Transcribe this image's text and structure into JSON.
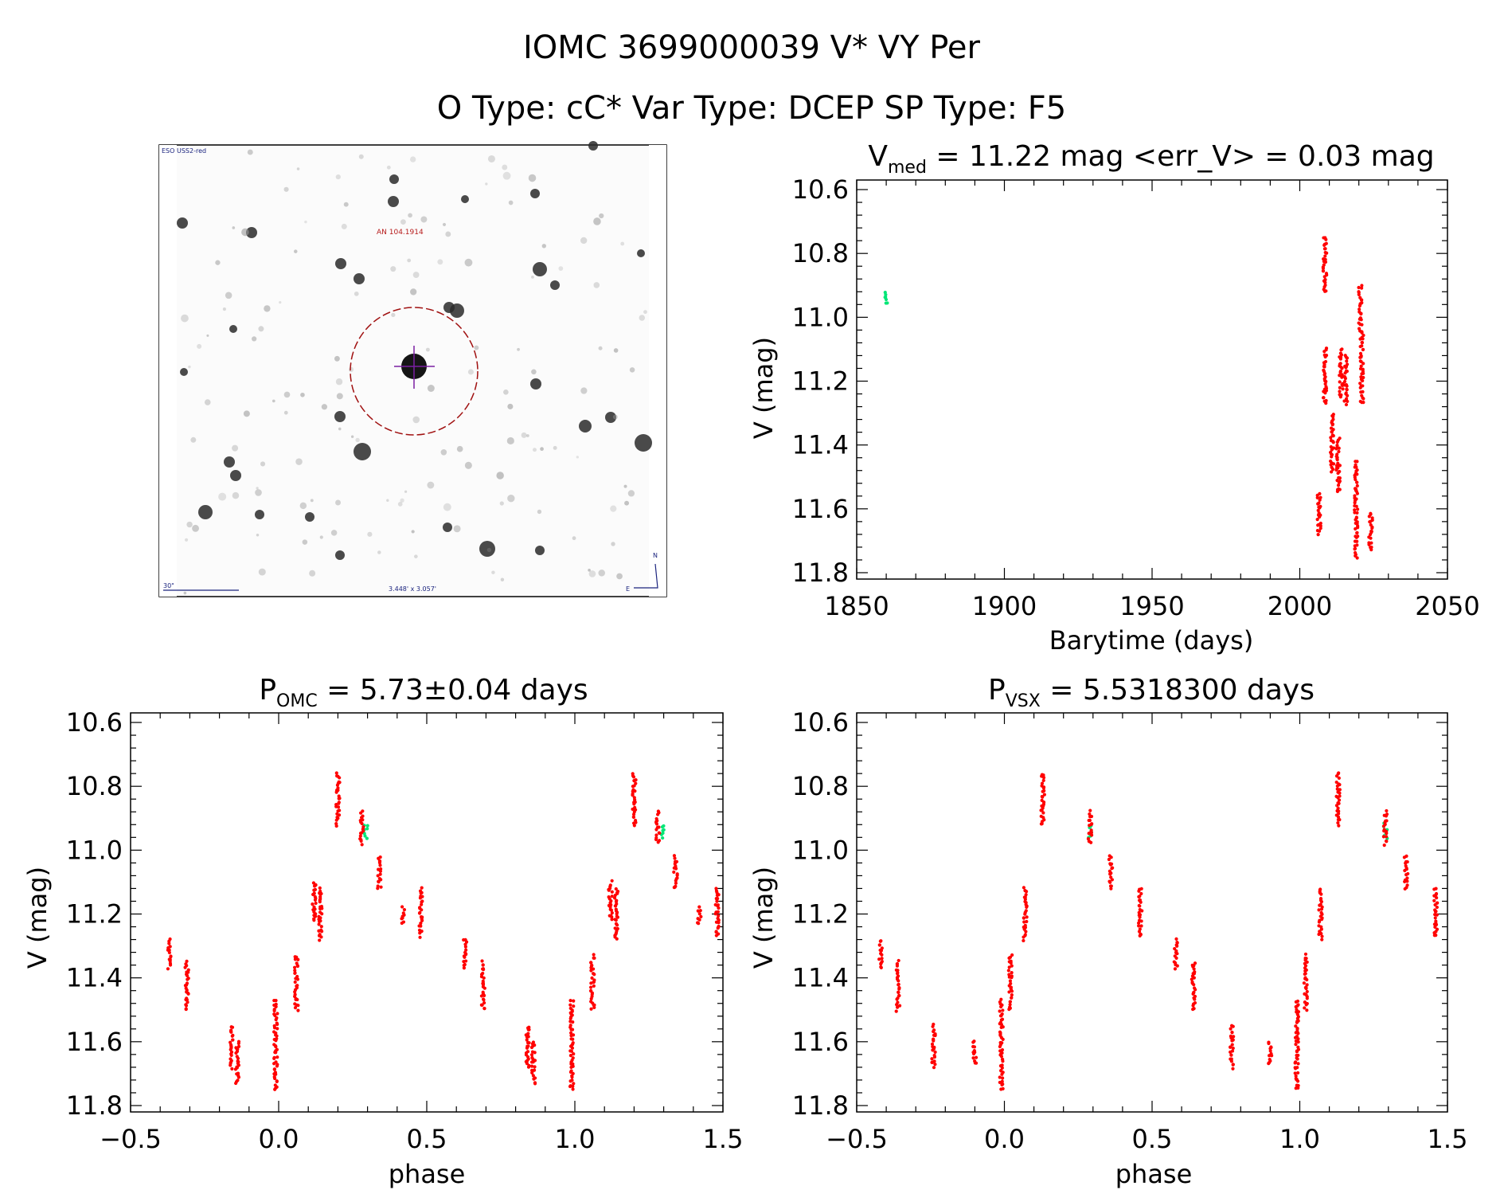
{
  "header": {
    "title": "IOMC 3699000039   V* VY Per",
    "subtitle": "O Type: cC*  Var Type: DCEP  SP Type: F5"
  },
  "finder": {
    "survey_label": "ESO USS2-red",
    "target_label": "AN 104.1914",
    "scale_label": "30\"",
    "size_label": "3.448' x 3.057'",
    "north_label": "N",
    "east_label": "E"
  },
  "colors": {
    "red_points": "#ff0000",
    "green_points": "#00e676",
    "circle": "#a01010"
  },
  "chart_data": [
    {
      "type": "scatter",
      "title_main": "V",
      "title_sub": "med",
      "title_rest": " = 11.22 mag <err_V> = 0.03 mag",
      "xlabel": "Barytime (days)",
      "ylabel": "V (mag)",
      "xlim": [
        1850,
        2050
      ],
      "ylim": [
        11.82,
        10.57
      ],
      "xticks": [
        1850,
        1900,
        1950,
        2000,
        2050
      ],
      "xtick_labels": [
        "1850",
        "1900",
        "1950",
        "2000",
        "2050"
      ],
      "yticks": [
        10.6,
        10.8,
        11.0,
        11.2,
        11.4,
        11.6,
        11.8
      ],
      "ytick_labels": [
        "10.6",
        "10.8",
        "11.0",
        "11.2",
        "11.4",
        "11.6",
        "11.8"
      ],
      "series": [
        {
          "name": "green",
          "clusters": [
            [
              1860,
              10.92,
              10.96
            ]
          ]
        },
        {
          "name": "red",
          "clusters": [
            [
              2006.5,
              11.55,
              11.68
            ],
            [
              2008.5,
              10.75,
              10.92
            ],
            [
              2008.5,
              11.1,
              11.27
            ],
            [
              2011,
              11.3,
              11.48
            ],
            [
              2013,
              11.38,
              11.55
            ],
            [
              2014,
              11.1,
              11.25
            ],
            [
              2015.5,
              11.12,
              11.27
            ],
            [
              2019,
              11.45,
              11.75
            ],
            [
              2020.5,
              10.9,
              11.05
            ],
            [
              2021,
              11.05,
              11.27
            ],
            [
              2024,
              11.61,
              11.73
            ]
          ]
        }
      ]
    },
    {
      "type": "scatter",
      "title_main": "P",
      "title_sub": "OMC",
      "title_rest": " = 5.73±0.04 days",
      "xlabel": "phase",
      "ylabel": "V (mag)",
      "xlim": [
        -0.5,
        1.5
      ],
      "ylim": [
        11.82,
        10.57
      ],
      "xticks": [
        -0.5,
        0.0,
        0.5,
        1.0,
        1.5
      ],
      "xtick_labels": [
        "−0.5",
        "0.0",
        "0.5",
        "1.0",
        "1.5"
      ],
      "yticks": [
        10.6,
        10.8,
        11.0,
        11.2,
        11.4,
        11.6,
        11.8
      ],
      "ytick_labels": [
        "10.6",
        "10.8",
        "11.0",
        "11.2",
        "11.4",
        "11.6",
        "11.8"
      ],
      "series": [
        {
          "name": "green",
          "clusters": [
            [
              0.295,
              10.92,
              10.96
            ],
            [
              1.295,
              10.92,
              10.96
            ]
          ]
        },
        {
          "name": "red",
          "clusters": [
            [
              -0.37,
              11.28,
              11.37
            ],
            [
              -0.31,
              11.35,
              11.5
            ],
            [
              -0.16,
              11.55,
              11.68
            ],
            [
              -0.14,
              11.6,
              11.73
            ],
            [
              -0.01,
              11.47,
              11.75
            ],
            [
              0.06,
              11.33,
              11.5
            ],
            [
              0.12,
              11.1,
              11.22
            ],
            [
              0.14,
              11.12,
              11.28
            ],
            [
              0.2,
              10.76,
              10.92
            ],
            [
              0.28,
              10.88,
              10.98
            ],
            [
              0.34,
              11.02,
              11.12
            ],
            [
              0.42,
              11.18,
              11.23
            ],
            [
              0.48,
              11.12,
              11.27
            ],
            [
              0.63,
              11.28,
              11.37
            ],
            [
              0.69,
              11.35,
              11.5
            ],
            [
              0.84,
              11.55,
              11.68
            ],
            [
              0.86,
              11.6,
              11.73
            ],
            [
              0.99,
              11.47,
              11.75
            ],
            [
              1.06,
              11.33,
              11.5
            ],
            [
              1.12,
              11.1,
              11.22
            ],
            [
              1.14,
              11.12,
              11.28
            ],
            [
              1.2,
              10.76,
              10.92
            ],
            [
              1.28,
              10.88,
              10.98
            ],
            [
              1.34,
              11.02,
              11.12
            ],
            [
              1.42,
              11.18,
              11.23
            ],
            [
              1.48,
              11.12,
              11.27
            ]
          ]
        }
      ]
    },
    {
      "type": "scatter",
      "title_main": "P",
      "title_sub": "VSX",
      "title_rest": " = 5.5318300 days",
      "xlabel": "phase",
      "ylabel": "V (mag)",
      "xlim": [
        -0.5,
        1.5
      ],
      "ylim": [
        11.82,
        10.57
      ],
      "xticks": [
        -0.5,
        0.0,
        0.5,
        1.0,
        1.5
      ],
      "xtick_labels": [
        "−0.5",
        "0.0",
        "0.5",
        "1.0",
        "1.5"
      ],
      "yticks": [
        10.6,
        10.8,
        11.0,
        11.2,
        11.4,
        11.6,
        11.8
      ],
      "ytick_labels": [
        "10.6",
        "10.8",
        "11.0",
        "11.2",
        "11.4",
        "11.6",
        "11.8"
      ],
      "series": [
        {
          "name": "green",
          "clusters": [
            [
              0.29,
              10.92,
              10.96
            ],
            [
              1.29,
              10.92,
              10.96
            ]
          ]
        },
        {
          "name": "red",
          "clusters": [
            [
              -0.42,
              11.28,
              11.37
            ],
            [
              -0.36,
              11.35,
              11.5
            ],
            [
              -0.24,
              11.55,
              11.68
            ],
            [
              -0.1,
              11.6,
              11.67
            ],
            [
              -0.01,
              11.47,
              11.75
            ],
            [
              0.02,
              11.33,
              11.5
            ],
            [
              0.07,
              11.12,
              11.28
            ],
            [
              0.13,
              10.76,
              10.92
            ],
            [
              0.29,
              10.88,
              10.98
            ],
            [
              0.36,
              11.02,
              11.12
            ],
            [
              0.46,
              11.12,
              11.27
            ],
            [
              0.58,
              11.28,
              11.37
            ],
            [
              0.64,
              11.35,
              11.5
            ],
            [
              0.77,
              11.55,
              11.68
            ],
            [
              0.9,
              11.6,
              11.67
            ],
            [
              0.99,
              11.47,
              11.75
            ],
            [
              1.02,
              11.33,
              11.5
            ],
            [
              1.07,
              11.12,
              11.28
            ],
            [
              1.13,
              10.76,
              10.92
            ],
            [
              1.29,
              10.88,
              10.98
            ],
            [
              1.36,
              11.02,
              11.12
            ],
            [
              1.46,
              11.12,
              11.27
            ]
          ]
        }
      ]
    }
  ]
}
